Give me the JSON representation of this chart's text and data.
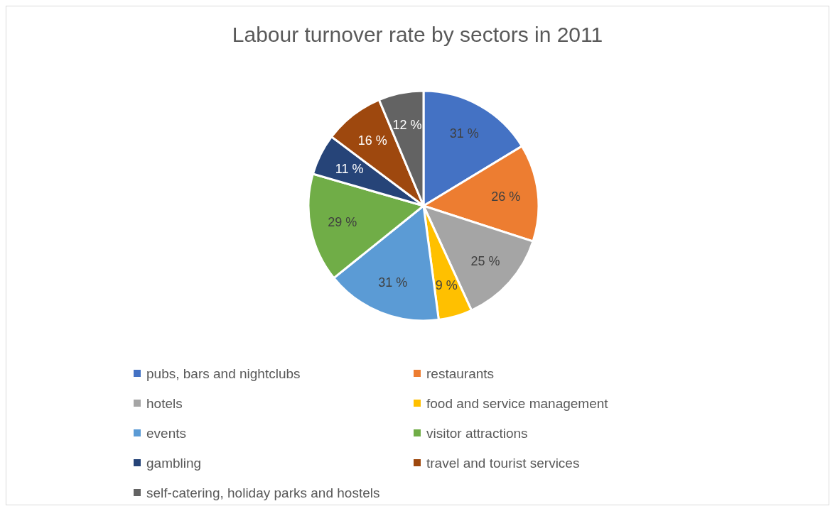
{
  "chart_data": {
    "type": "pie",
    "title": "Labour turnover rate by sectors in 2011",
    "categories": [
      "pubs, bars and nightclubs",
      "restaurants",
      "hotels",
      "food and service management",
      "events",
      "visitor attractions",
      "gambling",
      "travel and tourist services",
      "self-catering, holiday parks and hostels"
    ],
    "values": [
      31,
      26,
      25,
      9,
      31,
      29,
      11,
      16,
      12
    ],
    "value_labels": [
      "31 %",
      "26 %",
      "25 %",
      "9 %",
      "31 %",
      "29 %",
      "11 %",
      "16 %",
      "12 %"
    ],
    "colors": [
      "#4472c4",
      "#ed7d31",
      "#a5a5a5",
      "#ffc000",
      "#5b9bd5",
      "#70ad47",
      "#264478",
      "#9e480e",
      "#636363"
    ],
    "legend": "bottom"
  }
}
